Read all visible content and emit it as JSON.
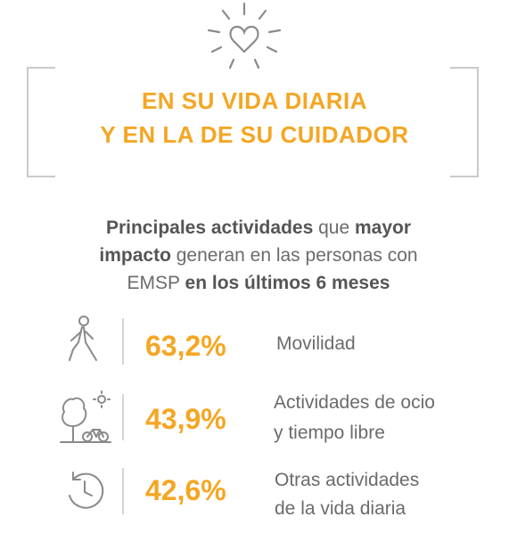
{
  "header": {
    "line1": "EN SU VIDA DIARIA",
    "line2": "Y EN LA DE SU CUIDADOR"
  },
  "intro": {
    "part1": "Principales actividades",
    "part2": " que ",
    "part3": "mayor",
    "part4": "impacto",
    "part5": " generan en las personas con EMSP ",
    "part6": "en los últimos 6 meses"
  },
  "stats": [
    {
      "value": "63,2%",
      "label_line1": "Movilidad",
      "label_line2": "",
      "icon": "walking-person-icon"
    },
    {
      "value": "43,9%",
      "label_line1": "Actividades de ocio",
      "label_line2": "y tiempo libre",
      "icon": "leisure-tree-bike-icon"
    },
    {
      "value": "42,6%",
      "label_line1": "Otras actividades",
      "label_line2": "de la vida diaria",
      "icon": "clock-icon"
    }
  ],
  "colors": {
    "accent": "#f5a623",
    "text": "#6b6b6b",
    "bracket": "#c9c9c9",
    "icon": "#8a8a8a"
  }
}
